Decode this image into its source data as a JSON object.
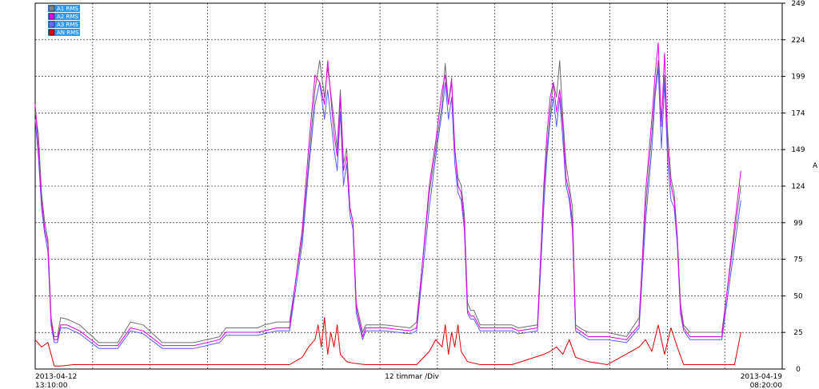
{
  "chart_data": {
    "type": "line",
    "unit": "A",
    "x_center_label": "12 timmar /Div",
    "x_start_date": "2013-04-12",
    "x_start_time": "13:10:00",
    "x_end_date": "2013-04-19",
    "x_end_time": "08:20:00",
    "ylim": [
      0,
      249
    ],
    "y_ticks": [
      "0",
      "25",
      "50",
      "75",
      "99",
      "124",
      "149",
      "174",
      "199",
      "224",
      "249"
    ],
    "grid": true,
    "legend_position": "top-left",
    "series": [
      {
        "name": "A1 RMS",
        "color": "#6e6e6e",
        "swatch": "#808080",
        "x_h": [
          0,
          1,
          2,
          3,
          4,
          5,
          6,
          7,
          8,
          10,
          12,
          14,
          20,
          26,
          30,
          34,
          40,
          50,
          58,
          60,
          70,
          72,
          76,
          80,
          84,
          86,
          88,
          89.5,
          91,
          92,
          94,
          95,
          96,
          97,
          98,
          99,
          100,
          101,
          103,
          104,
          106,
          110,
          118,
          120,
          124,
          126,
          128,
          129,
          130,
          131,
          132,
          133,
          134,
          135,
          136,
          137,
          138,
          140,
          142,
          146,
          150,
          152,
          158,
          160,
          161,
          162,
          163,
          164,
          165,
          166,
          167,
          168,
          169,
          170,
          172,
          174,
          176,
          180,
          186,
          190,
          192,
          194,
          195,
          196,
          197,
          198,
          199,
          200,
          201,
          202,
          203,
          204,
          206,
          210,
          214,
          216,
          222
        ],
        "y": [
          175,
          160,
          120,
          100,
          88,
          35,
          22,
          22,
          35,
          34,
          32,
          30,
          18,
          18,
          32,
          30,
          18,
          18,
          22,
          28,
          28,
          30,
          32,
          32,
          90,
          140,
          190,
          210,
          185,
          205,
          170,
          150,
          190,
          140,
          150,
          110,
          100,
          45,
          25,
          30,
          30,
          30,
          28,
          32,
          120,
          150,
          180,
          208,
          180,
          195,
          150,
          130,
          125,
          105,
          45,
          40,
          40,
          30,
          30,
          30,
          30,
          28,
          30,
          120,
          150,
          175,
          195,
          185,
          210,
          170,
          140,
          125,
          110,
          30,
          27,
          25,
          25,
          25,
          22,
          35,
          110,
          160,
          190,
          210,
          170,
          200,
          160,
          130,
          120,
          90,
          45,
          30,
          25,
          25,
          25,
          25,
          125
        ]
      },
      {
        "name": "A2 RMS",
        "color": "#e600e6",
        "swatch": "#e600e6",
        "x_h": [
          0,
          1,
          2,
          3,
          4,
          5,
          6,
          7,
          8,
          10,
          12,
          14,
          20,
          26,
          30,
          34,
          40,
          50,
          58,
          60,
          70,
          72,
          76,
          80,
          84,
          86,
          88,
          89.5,
          91,
          92,
          94,
          95,
          96,
          97,
          98,
          99,
          100,
          101,
          103,
          104,
          106,
          110,
          118,
          120,
          124,
          126,
          128,
          129,
          130,
          131,
          132,
          133,
          134,
          135,
          136,
          137,
          138,
          140,
          142,
          146,
          150,
          152,
          158,
          160,
          161,
          162,
          163,
          164,
          165,
          166,
          167,
          168,
          169,
          170,
          172,
          174,
          176,
          180,
          186,
          190,
          192,
          194,
          195,
          196,
          197,
          198,
          199,
          200,
          201,
          202,
          203,
          204,
          206,
          210,
          214,
          216,
          222
        ],
        "y": [
          180,
          150,
          115,
          95,
          85,
          32,
          20,
          20,
          30,
          30,
          28,
          26,
          16,
          16,
          28,
          26,
          16,
          16,
          20,
          25,
          25,
          26,
          28,
          28,
          95,
          150,
          200,
          195,
          180,
          210,
          160,
          145,
          185,
          135,
          145,
          110,
          100,
          42,
          22,
          28,
          28,
          28,
          26,
          28,
          125,
          155,
          190,
          200,
          180,
          198,
          150,
          125,
          120,
          100,
          40,
          36,
          36,
          28,
          28,
          28,
          28,
          26,
          28,
          125,
          160,
          185,
          195,
          175,
          190,
          165,
          130,
          120,
          100,
          28,
          25,
          22,
          22,
          22,
          20,
          30,
          120,
          170,
          200,
          222,
          165,
          215,
          150,
          125,
          115,
          90,
          40,
          28,
          22,
          22,
          22,
          22,
          135
        ]
      },
      {
        "name": "A3 RMS",
        "color": "#5a5aff",
        "swatch": "#6a6aff",
        "x_h": [
          0,
          1,
          2,
          3,
          4,
          5,
          6,
          7,
          8,
          10,
          12,
          14,
          20,
          26,
          30,
          34,
          40,
          50,
          58,
          60,
          70,
          72,
          76,
          80,
          84,
          86,
          88,
          89.5,
          91,
          92,
          94,
          95,
          96,
          97,
          98,
          99,
          100,
          101,
          103,
          104,
          106,
          110,
          118,
          120,
          124,
          126,
          128,
          129,
          130,
          131,
          132,
          133,
          134,
          135,
          136,
          137,
          138,
          140,
          142,
          146,
          150,
          152,
          158,
          160,
          161,
          162,
          163,
          164,
          165,
          166,
          167,
          168,
          169,
          170,
          172,
          174,
          176,
          180,
          186,
          190,
          192,
          194,
          195,
          196,
          197,
          198,
          199,
          200,
          201,
          202,
          203,
          204,
          206,
          210,
          214,
          216,
          222
        ],
        "y": [
          170,
          145,
          110,
          92,
          80,
          30,
          18,
          18,
          28,
          28,
          26,
          24,
          14,
          14,
          26,
          24,
          14,
          14,
          18,
          23,
          23,
          24,
          26,
          26,
          85,
          135,
          180,
          195,
          170,
          190,
          150,
          135,
          175,
          125,
          140,
          105,
          95,
          38,
          20,
          26,
          26,
          26,
          24,
          26,
          110,
          145,
          175,
          195,
          170,
          185,
          140,
          120,
          115,
          95,
          38,
          34,
          34,
          26,
          26,
          26,
          26,
          24,
          26,
          110,
          145,
          170,
          185,
          165,
          185,
          155,
          125,
          115,
          95,
          26,
          23,
          20,
          20,
          20,
          18,
          28,
          100,
          150,
          185,
          205,
          150,
          195,
          140,
          115,
          110,
          85,
          38,
          26,
          20,
          20,
          20,
          20,
          115
        ]
      },
      {
        "name": "AN RMS",
        "color": "#e00000",
        "swatch": "#e00000",
        "x_h": [
          0,
          2,
          4,
          6,
          8,
          12,
          20,
          30,
          40,
          50,
          60,
          70,
          80,
          84,
          86,
          88,
          89,
          90,
          91,
          92,
          93,
          94,
          95,
          96,
          98,
          100,
          104,
          110,
          120,
          124,
          126,
          128,
          129,
          130,
          131,
          132,
          133,
          134,
          136,
          140,
          150,
          160,
          162,
          164,
          166,
          168,
          170,
          174,
          180,
          190,
          192,
          194,
          196,
          198,
          200,
          202,
          204,
          210,
          220,
          222
        ],
        "y": [
          20,
          15,
          18,
          2,
          2,
          3,
          3,
          3,
          3,
          3,
          3,
          3,
          3,
          8,
          15,
          20,
          30,
          15,
          35,
          10,
          25,
          15,
          30,
          10,
          5,
          4,
          3,
          3,
          3,
          12,
          20,
          15,
          30,
          10,
          25,
          15,
          30,
          12,
          5,
          3,
          3,
          10,
          12,
          15,
          10,
          20,
          8,
          5,
          3,
          15,
          20,
          12,
          30,
          10,
          28,
          15,
          3,
          3,
          3,
          25
        ]
      }
    ]
  }
}
